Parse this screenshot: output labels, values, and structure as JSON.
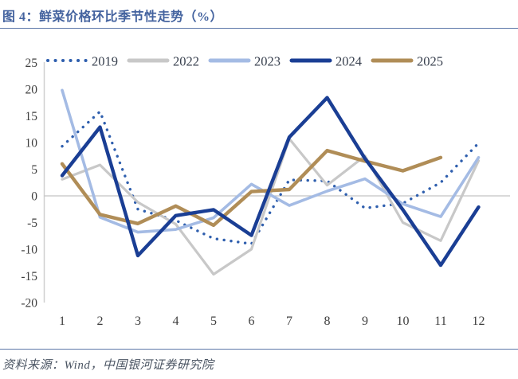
{
  "header": {
    "title": "图 4：鲜菜价格环比季节性走势（%）"
  },
  "footer": {
    "source": "资料来源：Wind，中国银河证券研究院"
  },
  "colors": {
    "title_text": "#44639f",
    "divider_rule": "#5c77a8",
    "axis_text": "#3f3f3f",
    "legend_text": "#39414f",
    "zero_line": "#c3c3c3",
    "axis_line": "#cfcfcf",
    "footer_text": "#4b5563"
  },
  "chart_data": {
    "type": "line",
    "title": "图 4：鲜菜价格环比季节性走势（%）",
    "x": [
      1,
      2,
      3,
      4,
      5,
      6,
      7,
      8,
      9,
      10,
      11,
      12
    ],
    "xlabel": "",
    "ylabel": "",
    "ylim": [
      -20,
      25
    ],
    "yticks": [
      25,
      20,
      15,
      10,
      5,
      0,
      -5,
      -10,
      -15,
      -20
    ],
    "grid": "zero-line-only",
    "legend_position": "top",
    "series": [
      {
        "name": "2019",
        "line_style": "dotted",
        "color": "#2f5fae",
        "values": [
          9.3,
          15.8,
          -2.5,
          -4.6,
          -8,
          -9,
          3,
          2.8,
          -2.3,
          -1.4,
          2.5,
          9.9
        ]
      },
      {
        "name": "2022",
        "line_style": "solid",
        "color": "#c8c8c8",
        "values": [
          3.1,
          5.8,
          -1.2,
          -5.3,
          -14.7,
          -10,
          10.7,
          2,
          7.5,
          -5,
          -8.4,
          6.6
        ]
      },
      {
        "name": "2023",
        "line_style": "solid",
        "color": "#a4bbe4",
        "values": [
          19.8,
          -4,
          -6.8,
          -6.3,
          -4.1,
          2.2,
          -1.8,
          0.9,
          3.2,
          -1.5,
          -3.9,
          7.2
        ]
      },
      {
        "name": "2024",
        "line_style": "solid",
        "color": "#1a3e94",
        "values": [
          3.8,
          12.9,
          -11.2,
          -3.7,
          -2.6,
          -7.4,
          11,
          18.4,
          7,
          -2.6,
          -13,
          -2.1
        ]
      },
      {
        "name": "2025",
        "line_style": "solid",
        "color": "#b08d57",
        "values": [
          6,
          -3.5,
          -5.2,
          -1.9,
          -5.5,
          0.8,
          1.2,
          8.5,
          6.5,
          4.7,
          7.2,
          null
        ]
      }
    ]
  }
}
